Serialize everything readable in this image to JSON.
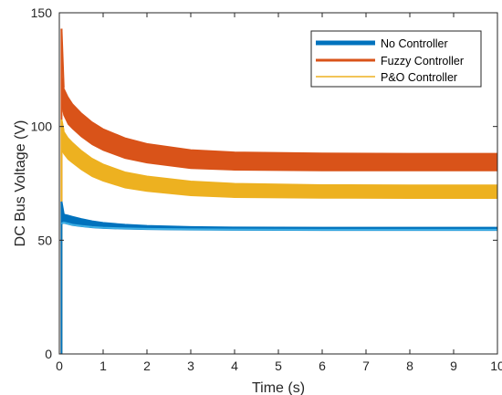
{
  "chart_data": {
    "type": "line",
    "title": "",
    "xlabel": "Time (s)",
    "ylabel": "DC Bus Voltage (V)",
    "xlim": [
      0,
      10
    ],
    "ylim": [
      0,
      150
    ],
    "xticks": [
      "0",
      "1",
      "2",
      "3",
      "4",
      "5",
      "6",
      "7",
      "8",
      "9",
      "10"
    ],
    "yticks": [
      "0",
      "50",
      "100",
      "150"
    ],
    "grid": false,
    "legend_position": "top-right",
    "series": [
      {
        "name": "No Controller",
        "color": "#0072BD",
        "style": "blue band, narrow ripple",
        "x": [
          0.05,
          0.1,
          0.2,
          0.3,
          0.5,
          0.75,
          1.0,
          1.5,
          2.0,
          3.0,
          4.0,
          6.0,
          8.0,
          10.0
        ],
        "y_low": [
          57,
          57.5,
          57,
          56.5,
          56,
          55.5,
          55.2,
          54.9,
          54.7,
          54.5,
          54.4,
          54.3,
          54.3,
          54.3
        ],
        "y_high": [
          63,
          61.5,
          61,
          60.5,
          59.5,
          58.5,
          57.8,
          57,
          56.5,
          56,
          55.8,
          55.7,
          55.7,
          55.7
        ],
        "initial_spike": 67
      },
      {
        "name": "Fuzzy Controller",
        "color": "#D95319",
        "style": "orange band, wide ripple",
        "x": [
          0.05,
          0.1,
          0.2,
          0.3,
          0.5,
          0.75,
          1.0,
          1.5,
          2.0,
          3.0,
          4.0,
          6.0,
          8.0,
          10.0
        ],
        "y_low": [
          110,
          105,
          101,
          99,
          95.5,
          92,
          89.5,
          86,
          84,
          81.5,
          80.8,
          80.5,
          80.5,
          80.5
        ],
        "y_high": [
          122,
          117,
          113,
          110,
          106,
          102,
          99,
          95,
          92.5,
          89.8,
          88.8,
          88.3,
          88.2,
          88.2
        ],
        "initial_spike": 143
      },
      {
        "name": "P&O Controller",
        "color": "#EDB120",
        "style": "yellow band, wide ripple",
        "x": [
          0.05,
          0.1,
          0.2,
          0.3,
          0.5,
          0.75,
          1.0,
          1.5,
          2.0,
          3.0,
          4.0,
          6.0,
          8.0,
          10.0
        ],
        "y_low": [
          90,
          88,
          85.5,
          84,
          81,
          78,
          76,
          73,
          71.5,
          69.6,
          68.8,
          68.5,
          68.4,
          68.4
        ],
        "y_high": [
          100,
          98,
          95,
          93,
          89.5,
          86,
          83.5,
          80,
          78.2,
          76,
          75,
          74.4,
          74.3,
          74.3
        ],
        "initial_spike": 103
      }
    ]
  }
}
